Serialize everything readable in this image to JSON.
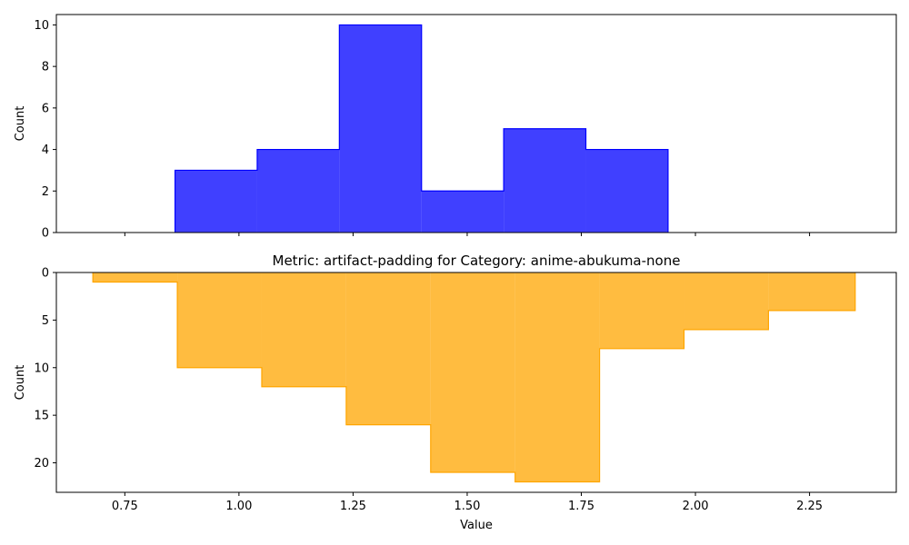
{
  "chart_data": [
    {
      "type": "bar",
      "histtype": "stepfilled",
      "title": "",
      "xlabel": "",
      "ylabel": "Count",
      "xlim": [
        0.6,
        2.44
      ],
      "ylim": [
        0,
        10.5
      ],
      "inverted_y": false,
      "xticks_shown": false,
      "yticks": [
        0,
        2,
        4,
        6,
        8,
        10
      ],
      "bin_edges": [
        0.86,
        1.04,
        1.22,
        1.4,
        1.58,
        1.76,
        1.94
      ],
      "values": [
        3,
        4,
        10,
        2,
        5,
        4
      ],
      "color": "#0000ff"
    },
    {
      "type": "bar",
      "histtype": "stepfilled",
      "title": "Metric: artifact-padding for Category: anime-abukuma-none",
      "xlabel": "Value",
      "ylabel": "Count",
      "xlim": [
        0.6,
        2.44
      ],
      "ylim": [
        0,
        23.1
      ],
      "inverted_y": true,
      "xticks": [
        "0.75",
        "1.00",
        "1.25",
        "1.50",
        "1.75",
        "2.00",
        "2.25"
      ],
      "yticks": [
        0,
        5,
        10,
        15,
        20
      ],
      "bin_edges": [
        0.68,
        0.865,
        1.05,
        1.235,
        1.42,
        1.605,
        1.79,
        1.975,
        2.16,
        2.35
      ],
      "values": [
        1,
        10,
        12,
        16,
        21,
        22,
        8,
        6,
        4
      ],
      "color": "#ffa500"
    }
  ]
}
